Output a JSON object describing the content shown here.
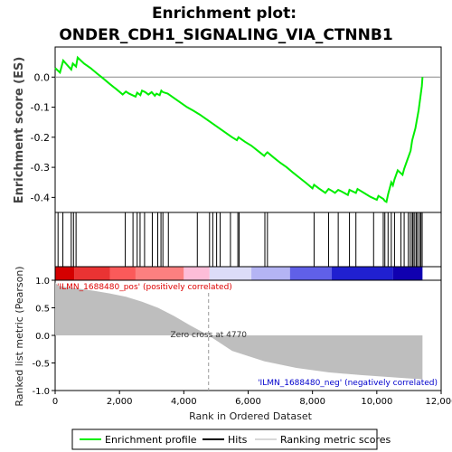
{
  "title_line1": "Enrichment plot:",
  "title_line2": "ONDER_CDH1_SIGNALING_VIA_CTNNB1",
  "top_ylabel": "Enrichment score (ES)",
  "bottom_ylabel": "Ranked list metric (Pearson)",
  "xlabel": "Rank in Ordered Dataset",
  "pos_label": "'ILMN_1688480_pos' (positively correlated)",
  "neg_label": "'ILMN_1688480_neg' (negatively correlated)",
  "zero_cross_label": "Zero cross at 4770",
  "legend": {
    "profile": "Enrichment profile",
    "hits": "Hits",
    "metric": "Ranking metric scores"
  },
  "colors": {
    "profile": "#00ee00",
    "hits": "#000000",
    "metric_fill": "#bebebe",
    "pos_label": "#dd0000",
    "neg_label": "#0000cc"
  },
  "chart_data": {
    "type": "line",
    "es_curve": {
      "x": [
        0,
        150,
        250,
        500,
        550,
        650,
        700,
        900,
        1100,
        1300,
        1500,
        1700,
        1900,
        2100,
        2200,
        2300,
        2500,
        2550,
        2650,
        2700,
        2800,
        2900,
        3000,
        3100,
        3150,
        3250,
        3300,
        3350,
        3500,
        3700,
        3900,
        4100,
        4300,
        4500,
        4700,
        4900,
        5100,
        5300,
        5500,
        5650,
        5700,
        5900,
        6100,
        6300,
        6500,
        6550,
        6600,
        6800,
        7000,
        7200,
        7400,
        7600,
        7800,
        8000,
        8050,
        8200,
        8400,
        8500,
        8600,
        8700,
        8800,
        8900,
        9100,
        9150,
        9350,
        9400,
        9600,
        9800,
        10000,
        10050,
        10200,
        10250,
        10300,
        10350,
        10400,
        10450,
        10500,
        10550,
        10650,
        10700,
        10800,
        10850,
        10900,
        10950,
        11000,
        11050,
        11100,
        11150,
        11200,
        11250,
        11300,
        11350,
        11400,
        11420
      ],
      "y": [
        0.03,
        0.015,
        0.055,
        0.025,
        0.045,
        0.035,
        0.065,
        0.045,
        0.03,
        0.012,
        -0.005,
        -0.023,
        -0.04,
        -0.058,
        -0.048,
        -0.055,
        -0.065,
        -0.052,
        -0.06,
        -0.045,
        -0.05,
        -0.058,
        -0.05,
        -0.062,
        -0.055,
        -0.06,
        -0.045,
        -0.05,
        -0.055,
        -0.07,
        -0.085,
        -0.1,
        -0.112,
        -0.125,
        -0.14,
        -0.155,
        -0.17,
        -0.185,
        -0.2,
        -0.21,
        -0.2,
        -0.215,
        -0.228,
        -0.245,
        -0.262,
        -0.255,
        -0.25,
        -0.268,
        -0.285,
        -0.3,
        -0.318,
        -0.335,
        -0.352,
        -0.37,
        -0.358,
        -0.37,
        -0.385,
        -0.372,
        -0.378,
        -0.385,
        -0.375,
        -0.38,
        -0.392,
        -0.375,
        -0.385,
        -0.372,
        -0.385,
        -0.398,
        -0.408,
        -0.395,
        -0.405,
        -0.412,
        -0.415,
        -0.39,
        -0.37,
        -0.35,
        -0.36,
        -0.34,
        -0.31,
        -0.315,
        -0.325,
        -0.305,
        -0.29,
        -0.275,
        -0.26,
        -0.245,
        -0.21,
        -0.19,
        -0.17,
        -0.14,
        -0.11,
        -0.07,
        -0.03,
        0.0
      ]
    },
    "hits": [
      90,
      240,
      500,
      570,
      650,
      2180,
      2420,
      2550,
      2640,
      2780,
      3020,
      3190,
      3290,
      3350,
      3520,
      4420,
      4800,
      4900,
      5020,
      5130,
      5450,
      5680,
      5720,
      6520,
      6600,
      8050,
      8500,
      8800,
      9150,
      9350,
      9900,
      10200,
      10250,
      10350,
      10450,
      10550,
      10750,
      10850,
      10980,
      11040,
      11100,
      11130,
      11180,
      11230,
      11270,
      11330,
      11370,
      11410
    ],
    "metric_curve": {
      "x": [
        0,
        100,
        300,
        700,
        1200,
        1700,
        2200,
        2700,
        3200,
        3700,
        4200,
        4770,
        5500,
        6500,
        7500,
        8500,
        9500,
        10500,
        11000,
        11300,
        11420
      ],
      "y": [
        0.96,
        0.9,
        0.88,
        0.85,
        0.81,
        0.76,
        0.7,
        0.61,
        0.5,
        0.35,
        0.18,
        0.0,
        -0.28,
        -0.47,
        -0.59,
        -0.67,
        -0.72,
        -0.76,
        -0.78,
        -0.79,
        -0.8
      ]
    },
    "zero_cross": 4770,
    "n_genes": 11420,
    "xlim": [
      0,
      12000
    ],
    "es_ylim": [
      -0.45,
      0.1
    ],
    "metric_ylim": [
      -1.0,
      1.0
    ],
    "x_ticks": [
      0,
      2000,
      4000,
      6000,
      8000,
      10000,
      12000
    ],
    "x_tick_labels": [
      "0",
      "2,000",
      "4,000",
      "6,000",
      "8,000",
      "10,000",
      "12,000"
    ],
    "es_ticks": [
      0.0,
      -0.1,
      -0.2,
      -0.3,
      -0.4
    ],
    "es_tick_labels": [
      "0.0",
      "-0.1",
      "-0.2",
      "-0.3",
      "-0.4"
    ],
    "metric_ticks": [
      1.0,
      0.5,
      0.0,
      -0.5,
      -1.0
    ],
    "metric_tick_labels": [
      "1.0",
      "0.5",
      "0.0",
      "-0.5",
      "-1.0"
    ],
    "heatmap_colors": [
      "#d40000",
      "#ea3333",
      "#fb5a5a",
      "#fc8080",
      "#fdbdd8",
      "#dcdcf8",
      "#b4b4f4",
      "#6060e8",
      "#2020d0",
      "#1000b0"
    ],
    "heatmap_bounds": [
      0,
      600,
      1700,
      2500,
      4000,
      4800,
      6100,
      7300,
      8600,
      10500,
      11420
    ]
  }
}
